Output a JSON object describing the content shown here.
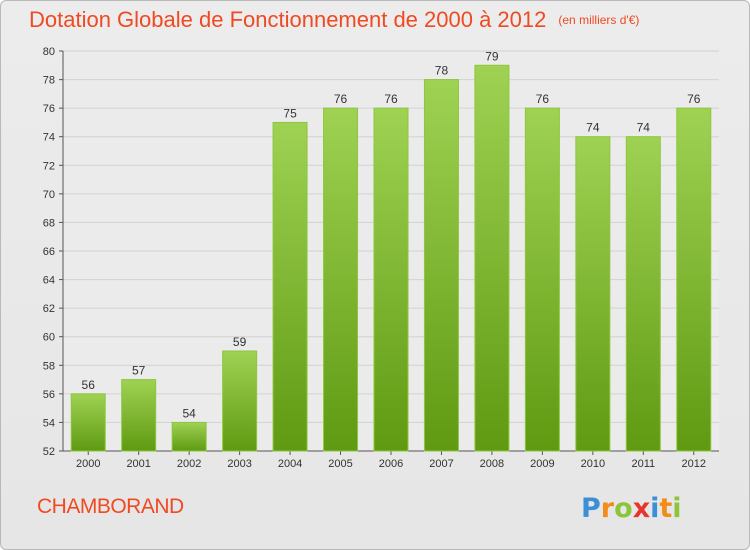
{
  "title": "Dotation Globale de Fonctionnement de 2000 à 2012",
  "subtitle": "(en milliers d'€)",
  "footer": {
    "commune": "CHAMBORAND",
    "logo_text": "Proxiti"
  },
  "colors": {
    "title": "#ef4a21",
    "bar_top": "#9fd253",
    "bar_bottom": "#5f9a12",
    "grid": "#d0d0d0"
  },
  "chart_data": {
    "type": "bar",
    "title": "Dotation Globale de Fonctionnement de 2000 à 2012",
    "subtitle": "(en milliers d'€)",
    "categories": [
      "2000",
      "2001",
      "2002",
      "2003",
      "2004",
      "2005",
      "2006",
      "2007",
      "2008",
      "2009",
      "2010",
      "2011",
      "2012"
    ],
    "values": [
      56,
      57,
      54,
      59,
      75,
      76,
      76,
      78,
      79,
      76,
      74,
      74,
      76
    ],
    "ylim": [
      52,
      80
    ],
    "yticks": [
      52,
      54,
      56,
      58,
      60,
      62,
      64,
      66,
      68,
      70,
      72,
      74,
      76,
      78,
      80
    ],
    "grid": true,
    "legend": "none"
  }
}
